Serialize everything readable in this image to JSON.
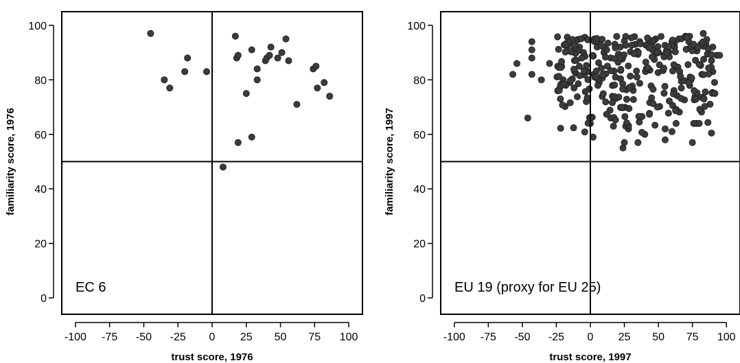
{
  "chart_data": [
    {
      "type": "scatter",
      "xlabel": "trust score, 1976",
      "ylabel": "familiarity score, 1976",
      "annotation": "EC 6",
      "xlim": [
        -110,
        110
      ],
      "ylim": [
        -6,
        105
      ],
      "xticks": [
        -100,
        -75,
        -50,
        -25,
        0,
        25,
        50,
        75,
        100
      ],
      "yticks": [
        0,
        20,
        40,
        60,
        80,
        100
      ],
      "xtick_labels": [
        "-100",
        "-75",
        "-50",
        "-25",
        "0",
        "25",
        "50",
        "75",
        "100"
      ],
      "ytick_labels": [
        "0",
        "20",
        "40",
        "60",
        "80",
        "100"
      ],
      "reference_lines": {
        "x": 0,
        "y": 50
      },
      "points": [
        [
          -45,
          97
        ],
        [
          -35,
          80
        ],
        [
          -31,
          77
        ],
        [
          -20,
          83
        ],
        [
          -18,
          88
        ],
        [
          -4,
          83
        ],
        [
          17,
          96
        ],
        [
          18,
          88
        ],
        [
          19,
          89
        ],
        [
          25,
          75
        ],
        [
          29,
          91
        ],
        [
          33,
          84
        ],
        [
          33,
          80
        ],
        [
          39,
          87
        ],
        [
          40,
          88
        ],
        [
          42,
          89
        ],
        [
          43,
          92
        ],
        [
          48,
          88
        ],
        [
          51,
          90
        ],
        [
          54,
          95
        ],
        [
          56,
          87
        ],
        [
          62,
          71
        ],
        [
          74,
          84
        ],
        [
          76,
          85
        ],
        [
          77,
          77
        ],
        [
          82,
          79
        ],
        [
          86,
          74
        ],
        [
          19,
          57
        ],
        [
          29,
          59
        ],
        [
          8,
          48
        ]
      ]
    },
    {
      "type": "scatter",
      "xlabel": "trust score, 1997",
      "ylabel": "familiarity score, 1997",
      "annotation": "EU 19 (proxy for EU 25)",
      "xlim": [
        -110,
        110
      ],
      "ylim": [
        -6,
        105
      ],
      "xticks": [
        -100,
        -75,
        -50,
        -25,
        0,
        25,
        50,
        75,
        100
      ],
      "yticks": [
        0,
        20,
        40,
        60,
        80,
        100
      ],
      "xtick_labels": [
        "-100",
        "-75",
        "-50",
        "-25",
        "0",
        "25",
        "50",
        "75",
        "100"
      ],
      "ytick_labels": [
        "0",
        "20",
        "40",
        "60",
        "80",
        "100"
      ],
      "reference_lines": {
        "x": 0,
        "y": 50
      },
      "cloud": {
        "count": 280,
        "x_range": [
          -25,
          92
        ],
        "y_range": [
          60,
          96
        ],
        "seed": 7
      },
      "points": [
        [
          -57,
          82
        ],
        [
          -54,
          86
        ],
        [
          -46,
          66
        ],
        [
          -43,
          94
        ],
        [
          -43,
          91
        ],
        [
          -43,
          88
        ],
        [
          -43,
          82
        ],
        [
          -36,
          80
        ],
        [
          -30,
          86
        ],
        [
          -24,
          85
        ],
        [
          -22,
          73
        ],
        [
          -15,
          79
        ],
        [
          -12,
          77
        ],
        [
          -5,
          90
        ],
        [
          -3,
          72
        ],
        [
          -2,
          83
        ],
        [
          0,
          64
        ],
        [
          2,
          59
        ],
        [
          3,
          95
        ],
        [
          5,
          92
        ],
        [
          10,
          90
        ],
        [
          15,
          88
        ],
        [
          15,
          66
        ],
        [
          17,
          63
        ],
        [
          24,
          55
        ],
        [
          25,
          57
        ],
        [
          26,
          63
        ],
        [
          28,
          62
        ],
        [
          35,
          57
        ],
        [
          40,
          60
        ],
        [
          55,
          58
        ],
        [
          55,
          62
        ],
        [
          60,
          61
        ],
        [
          63,
          64
        ],
        [
          75,
          57
        ],
        [
          76,
          64
        ],
        [
          78,
          64
        ],
        [
          80,
          64
        ],
        [
          83,
          97
        ],
        [
          85,
          93
        ],
        [
          90,
          92
        ],
        [
          93,
          89
        ],
        [
          95,
          89
        ],
        [
          90,
          83
        ],
        [
          82,
          82
        ],
        [
          70,
          96
        ],
        [
          65,
          95
        ],
        [
          60,
          94
        ],
        [
          48,
          95
        ],
        [
          45,
          93
        ],
        [
          33,
          93
        ],
        [
          22,
          92
        ],
        [
          12,
          91
        ],
        [
          -8,
          92
        ],
        [
          -18,
          78
        ],
        [
          -20,
          80
        ],
        [
          -24,
          76
        ]
      ]
    }
  ]
}
